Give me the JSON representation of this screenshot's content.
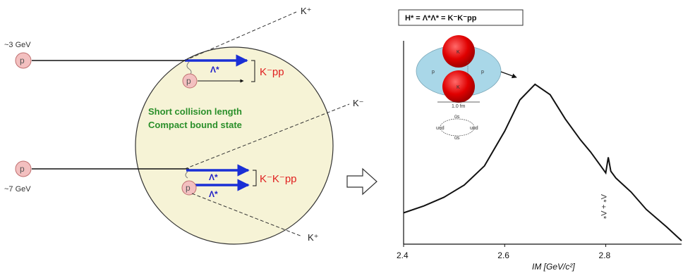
{
  "left_panel": {
    "beam_top_energy": "~3 GeV",
    "beam_bottom_energy": "~7 GeV",
    "proton_label": "p",
    "kplus_label": "K⁺",
    "kminus_label": "K⁻",
    "lambda_star": "Λ*",
    "product_top": "K⁻pp",
    "product_bottom": "K⁻K⁻pp",
    "green_line1": "Short collision length",
    "green_line2": "Compact bound state"
  },
  "right_panel": {
    "title": "H* = Λ*Λ* = K⁻K⁻pp",
    "inset": {
      "top_sphere": "K",
      "bottom_sphere": "K",
      "left_p": "p",
      "right_p": "p",
      "size_label": "1.0 fm",
      "quark_top": "ūs",
      "quark_left": "uud",
      "quark_right": "uud",
      "quark_bottom": "ūs"
    },
    "side_label": "Λ* + Λ*",
    "x_axis_label": "IM  [GeV/c²]",
    "x_ticks": [
      "2.4",
      "2.6",
      "2.8"
    ]
  },
  "chart_data": {
    "type": "line",
    "title": "H* = Λ*Λ* = K⁻K⁻pp",
    "xlabel": "IM  [GeV/c²]",
    "ylabel": "",
    "xlim": [
      2.4,
      2.95
    ],
    "x_ticks": [
      2.4,
      2.6,
      2.8
    ],
    "series": [
      {
        "x": [
          2.4,
          2.44,
          2.48,
          2.52,
          2.56,
          2.6,
          2.63,
          2.66,
          2.69,
          2.72,
          2.75,
          2.77,
          2.79,
          2.8,
          2.805,
          2.81,
          2.82,
          2.85,
          2.88,
          2.92,
          2.95
        ],
        "y": [
          0.18,
          0.22,
          0.27,
          0.34,
          0.45,
          0.65,
          0.83,
          0.92,
          0.86,
          0.72,
          0.6,
          0.53,
          0.45,
          0.41,
          0.5,
          0.42,
          0.38,
          0.3,
          0.2,
          0.1,
          0.02
        ]
      }
    ]
  },
  "arrow_label": ""
}
